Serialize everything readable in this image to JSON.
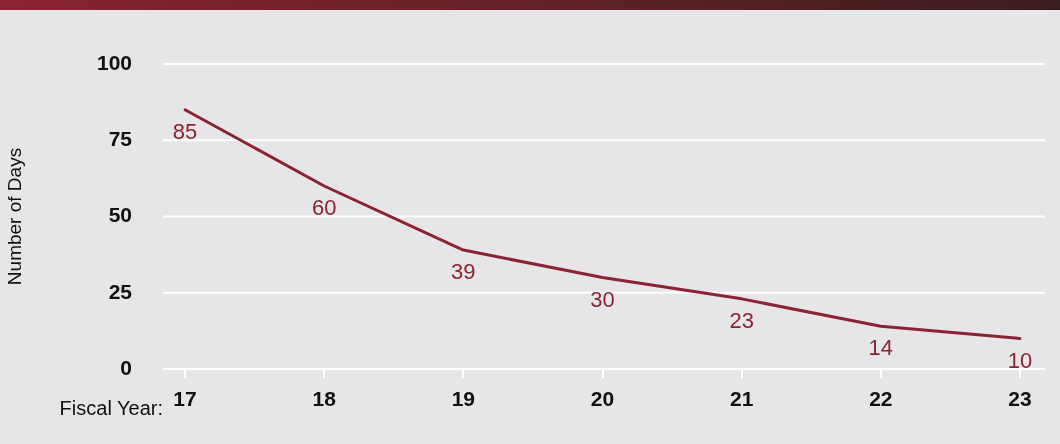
{
  "chart_data": {
    "type": "line",
    "xlabel": "Fiscal Year:",
    "ylabel": "Number of Days",
    "categories": [
      "17",
      "18",
      "19",
      "20",
      "21",
      "22",
      "23"
    ],
    "values": [
      85,
      60,
      39,
      30,
      23,
      14,
      10
    ],
    "color": "#8b2332",
    "ylim": [
      0,
      100
    ],
    "yticks": [
      0,
      25,
      50,
      75,
      100
    ],
    "grid": "y",
    "data_labels": true,
    "legend": false,
    "marker": "none",
    "line_style": "solid"
  }
}
